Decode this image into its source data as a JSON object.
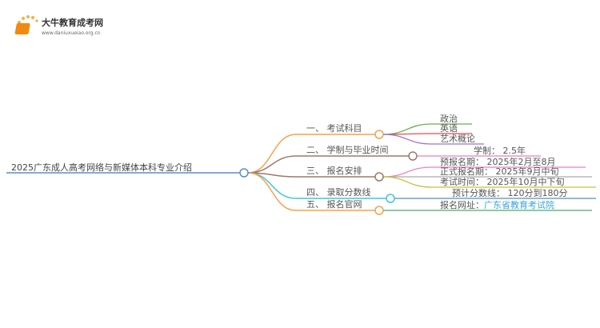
{
  "logo": {
    "title": "大牛教育成考网",
    "url": "www.daniuxueiao.org.cn"
  },
  "root": {
    "label": "2025广东成人高考网络与新媒体本科专业介绍",
    "color": "#5b8fc8"
  },
  "branches": [
    {
      "label": "一、 考试科目",
      "color": "#f7a04a",
      "leaves": [
        {
          "label": "政治",
          "color": "#6ab04c"
        },
        {
          "label": "英语",
          "color": "#e05050"
        },
        {
          "label": "艺术概论",
          "color": "#a070d0"
        }
      ]
    },
    {
      "label": "二、 学制与毕业时间",
      "color": "#a0786a",
      "leaves": [
        {
          "label": "学制： 2.5年",
          "color": "#e880c0"
        }
      ]
    },
    {
      "label": "三、 报名安排",
      "color": "#a0786a",
      "leaves": [
        {
          "label": "预报名期： 2025年2月至8月",
          "color": "#e880c0"
        },
        {
          "label": "正式报名期： 2025年9月中旬",
          "color": "#aaaaaa"
        },
        {
          "label": "考试时间： 2025年10月中下旬",
          "color": "#c8c040"
        }
      ]
    },
    {
      "label": "四、 录取分数线",
      "color": "#3cc8dc",
      "leaves": [
        {
          "label": "预计分数线： 120分到180分",
          "color": "#5090c0"
        }
      ]
    },
    {
      "label": "五、 报名官网",
      "color": "#f7a04a",
      "leaves": [
        {
          "label": "报名网址：",
          "link": "广东省教育考试院",
          "color": "#40b060"
        }
      ]
    }
  ]
}
